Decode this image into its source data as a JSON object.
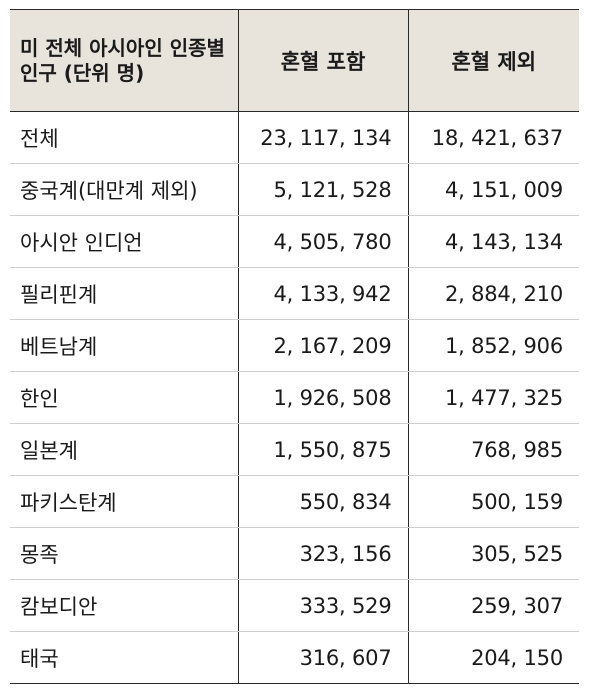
{
  "table": {
    "headers": [
      "미 전체 아시아인 인종별 인구 (단위 명)",
      "혼혈 포함",
      "혼혈 제외"
    ],
    "rows": [
      {
        "name": "전체",
        "incl": "23, 117, 134",
        "excl": "18, 421, 637"
      },
      {
        "name": "중국계(대만계 제외)",
        "incl": "5, 121, 528",
        "excl": "4, 151, 009"
      },
      {
        "name": "아시안 인디언",
        "incl": "4, 505, 780",
        "excl": "4, 143, 134"
      },
      {
        "name": "필리핀계",
        "incl": "4, 133, 942",
        "excl": "2, 884, 210"
      },
      {
        "name": "베트남계",
        "incl": "2, 167, 209",
        "excl": "1, 852, 906"
      },
      {
        "name": "한인",
        "incl": "1, 926, 508",
        "excl": "1, 477, 325"
      },
      {
        "name": "일본계",
        "incl": "1, 550, 875",
        "excl": "768, 985"
      },
      {
        "name": "파키스탄계",
        "incl": "550, 834",
        "excl": "500, 159"
      },
      {
        "name": "몽족",
        "incl": "323, 156",
        "excl": "305, 525"
      },
      {
        "name": "캄보디안",
        "incl": "333, 529",
        "excl": "259, 307"
      },
      {
        "name": "태국",
        "incl": "316, 607",
        "excl": "204, 150"
      }
    ]
  },
  "colors": {
    "header_bg": "#e8e4dc",
    "rule": "#2a2a2a",
    "row_divider": "#cfcfcf"
  }
}
